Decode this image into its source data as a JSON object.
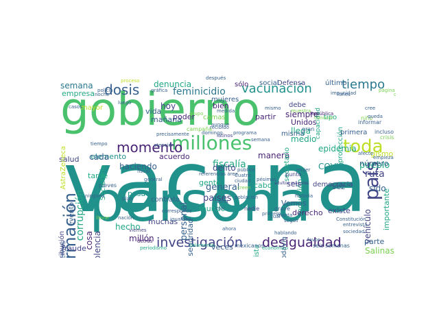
{
  "palette": {
    "yellow": "#bddf26",
    "lime": "#7ad151",
    "green": "#4ac16d",
    "teal": "#22a884",
    "sea": "#21918c",
    "blue": "#2a788e",
    "slate": "#355f8d",
    "indigo": "#414487",
    "purple": "#482475",
    "dark": "#440154"
  },
  "words": [
    {
      "id": "gobierno",
      "text": "gobierno"
    },
    {
      "id": "vacuna",
      "text": "vacuna"
    },
    {
      "id": "persona",
      "text": "persona"
    },
    {
      "id": "millones",
      "text": "millones"
    },
    {
      "id": "toda",
      "text": "toda"
    },
    {
      "id": "momento",
      "text": "momento"
    },
    {
      "id": "vacunacion",
      "text": "vacunación"
    },
    {
      "id": "tiempo",
      "text": "tiempo"
    },
    {
      "id": "dosis",
      "text": "dosis"
    },
    {
      "id": "informacion",
      "text": "información"
    },
    {
      "id": "investigacion",
      "text": "investigación"
    },
    {
      "id": "desigualdad",
      "text": "desigualdad"
    },
    {
      "id": "pais",
      "text": "país"
    },
    {
      "id": "feminicidio",
      "text": "feminicidio"
    },
    {
      "id": "denuncia",
      "text": "denuncia"
    },
    {
      "id": "semana",
      "text": "semana"
    },
    {
      "id": "empresa",
      "text": "empresa"
    },
    {
      "id": "corrupcion",
      "text": "corrupción"
    },
    {
      "id": "epidemia",
      "text": "epidemia"
    },
    {
      "id": "fiscalia",
      "text": "fiscalía"
    },
    {
      "id": "haciendo",
      "text": "haciendo"
    },
    {
      "id": "personal",
      "text": "personal"
    },
    {
      "id": "vehiculo",
      "text": "vehículo"
    },
    {
      "id": "reduccion",
      "text": "reducción"
    },
    {
      "id": "pueblo",
      "text": "pueblo"
    },
    {
      "id": "ruta",
      "text": "ruta"
    },
    {
      "id": "delito",
      "text": "delito"
    },
    {
      "id": "mundo",
      "text": "mundo"
    },
    {
      "id": "paises",
      "text": "países"
    },
    {
      "id": "general",
      "text": "general"
    },
    {
      "id": "cabo",
      "text": "cabo"
    },
    {
      "id": "derecho",
      "text": "derecho"
    },
    {
      "id": "existe",
      "text": "existe"
    },
    {
      "id": "seis",
      "text": "seis"
    },
    {
      "id": "gente",
      "text": "gente"
    },
    {
      "id": "hecho",
      "text": "hecho"
    },
    {
      "id": "fraude",
      "text": "fraude"
    },
    {
      "id": "hoy",
      "text": "hoy"
    },
    {
      "id": "poder",
      "text": "poder"
    },
    {
      "id": "bien",
      "text": "bien"
    },
    {
      "id": "debe",
      "text": "debe"
    },
    {
      "id": "siempre",
      "text": "siempre"
    },
    {
      "id": "unidos",
      "text": "Unidos"
    },
    {
      "id": "llega",
      "text": "llega"
    },
    {
      "id": "medio",
      "text": "medio"
    },
    {
      "id": "partir",
      "text": "partir"
    },
    {
      "id": "manera",
      "text": "manera"
    },
    {
      "id": "millon",
      "text": "millón"
    },
    {
      "id": "muchas",
      "text": "muchas"
    },
    {
      "id": "veces",
      "text": "veces"
    },
    {
      "id": "parte",
      "text": "parte"
    },
    {
      "id": "salinas",
      "text": "Salinas"
    },
    {
      "id": "covid",
      "text": "COVID"
    },
    {
      "id": "vemos",
      "text": "Vemos"
    },
    {
      "id": "vez",
      "text": "vez"
    },
    {
      "id": "sido",
      "text": "sido"
    },
    {
      "id": "numero",
      "text": "número"
    },
    {
      "id": "importante",
      "text": "importante"
    },
    {
      "id": "podemos",
      "text": "podemos"
    },
    {
      "id": "cosa",
      "text": "cosa"
    },
    {
      "id": "violencia",
      "text": "violencia"
    },
    {
      "id": "salud",
      "text": "salud"
    },
    {
      "id": "elemento",
      "text": "elemento"
    },
    {
      "id": "acuerdo",
      "text": "acuerdo"
    },
    {
      "id": "cada",
      "text": "cada"
    },
    {
      "id": "tarde",
      "text": "tarde"
    },
    {
      "id": "pasado",
      "text": "pasado"
    },
    {
      "id": "evento",
      "text": "evento"
    },
    {
      "id": "distribucion",
      "text": "distribución"
    },
    {
      "id": "mujeres",
      "text": "mujeres"
    },
    {
      "id": "manana",
      "text": "mañana"
    },
    {
      "id": "vida",
      "text": "vida"
    },
    {
      "id": "secretaria",
      "text": "Secretaría"
    },
    {
      "id": "secretario",
      "text": "secretario"
    },
    {
      "id": "seguridad",
      "text": "seguridad"
    },
    {
      "id": "contrato",
      "text": "contrato"
    },
    {
      "id": "periodista",
      "text": "periodista"
    },
    {
      "id": "todavia",
      "text": "todavía"
    },
    {
      "id": "democracia",
      "text": "democracia"
    },
    {
      "id": "proteccion",
      "text": "protección"
    },
    {
      "id": "primera",
      "text": "primera"
    },
    {
      "id": "ultimo",
      "text": "último"
    },
    {
      "id": "defensa",
      "text": "Defensa"
    },
    {
      "id": "social",
      "text": "social"
    },
    {
      "id": "solo",
      "text": "sólo"
    },
    {
      "id": "astrazeneca",
      "text": "AstraZeneca"
    },
    {
      "id": "mayor",
      "text": "mayor"
    },
    {
      "id": "tipo",
      "text": "tipo"
    },
    {
      "id": "capacidad",
      "text": "capacidad"
    },
    {
      "id": "camas",
      "text": "camas"
    },
    {
      "id": "campana",
      "text": "campaña"
    },
    {
      "id": "jueves",
      "text": "jueves"
    },
    {
      "id": "mexicanos",
      "text": "mexicanos"
    },
    {
      "id": "seis_semanas",
      "text": "seis semanas"
    },
    {
      "id": "mision",
      "text": "misma"
    },
    {
      "id": "gismo",
      "text": "gismo"
    },
    {
      "id": "grave",
      "text": "grave"
    },
    {
      "id": "punto",
      "text": "punto"
    },
    {
      "id": "nadie",
      "text": "nadie"
    },
    {
      "id": "gran",
      "text": "gran"
    },
    {
      "id": "informar",
      "text": "informar"
    },
    {
      "id": "incluso",
      "text": "incluso"
    },
    {
      "id": "crisis",
      "text": "crisis"
    },
    {
      "id": "nino",
      "text": "niño"
    },
    {
      "id": "recibido",
      "text": "recibido"
    },
    {
      "id": "latinos",
      "text": "latinos"
    },
    {
      "id": "corresponde",
      "text": "corresponde"
    },
    {
      "id": "igualdad",
      "text": "igualdad"
    },
    {
      "id": "poblacion",
      "text": "población"
    },
    {
      "id": "adultos_mayores",
      "text": "adultos mayores"
    },
    {
      "id": "conocer",
      "text": "conocer"
    },
    {
      "id": "impunidad",
      "text": "impunidad"
    },
    {
      "id": "ninguna",
      "text": "ninguna"
    },
    {
      "id": "nacion",
      "text": "nación"
    },
    {
      "id": "plan",
      "text": "plan"
    },
    {
      "id": "mujer",
      "text": "mujer"
    },
    {
      "id": "historia",
      "text": "historia"
    },
    {
      "id": "quinta",
      "text": "quinta"
    },
    {
      "id": "seguir",
      "text": "seguir"
    },
    {
      "id": "haciendo2",
      "text": "hablando"
    },
    {
      "id": "casos",
      "text": "casos"
    },
    {
      "id": "primero",
      "text": "primero"
    },
    {
      "id": "grafica",
      "text": "gráfica"
    },
    {
      "id": "cree",
      "text": "cree"
    },
    {
      "id": "queda",
      "text": "queda"
    },
    {
      "id": "despues",
      "text": "después"
    },
    {
      "id": "proceso",
      "text": "proceso"
    },
    {
      "id": "policia",
      "text": "policía"
    },
    {
      "id": "noche",
      "text": "noche"
    },
    {
      "id": "afecto",
      "text": "afecto"
    },
    {
      "id": "empieza",
      "text": "empieza"
    },
    {
      "id": "periodismo",
      "text": "periodismo"
    },
    {
      "id": "economico",
      "text": "económico"
    },
    {
      "id": "llevar",
      "text": "llevar"
    },
    {
      "id": "viernes",
      "text": "viernes"
    },
    {
      "id": "tiempo2",
      "text": "tiempo"
    },
    {
      "id": "zona",
      "text": "zona"
    },
    {
      "id": "casi",
      "text": "casi"
    },
    {
      "id": "aunque",
      "text": "aunque"
    },
    {
      "id": "domingo",
      "text": "domingo"
    },
    {
      "id": "publico",
      "text": "público"
    },
    {
      "id": "republica",
      "text": "República"
    },
    {
      "id": "solamente",
      "text": "solamente"
    },
    {
      "id": "detras",
      "text": "detrás"
    },
    {
      "id": "cuatro",
      "text": "Cuatro"
    },
    {
      "id": "ciudad",
      "text": "ciudad"
    },
    {
      "id": "creen",
      "text": "creen"
    },
    {
      "id": "precisamente",
      "text": "precisamente"
    },
    {
      "id": "programa",
      "text": "programa"
    },
    {
      "id": "semana2",
      "text": "semana"
    },
    {
      "id": "favor",
      "text": "favor"
    },
    {
      "id": "entrevista",
      "text": "entrevista"
    },
    {
      "id": "sociedad",
      "text": "sociedad"
    },
    {
      "id": "constitucion",
      "text": "Constitución"
    },
    {
      "id": "lunes",
      "text": "lunes"
    },
    {
      "id": "general2",
      "text": "general"
    },
    {
      "id": "mismo",
      "text": "mismo"
    },
    {
      "id": "cual",
      "text": "cuál"
    },
    {
      "id": "fiscal",
      "text": "fiscal"
    },
    {
      "id": "pagina",
      "text": "página"
    },
    {
      "id": "camino",
      "text": "camino"
    },
    {
      "id": "luego",
      "text": "luego"
    },
    {
      "id": "grupo",
      "text": "grupo"
    },
    {
      "id": "medida",
      "text": "medida"
    },
    {
      "id": "muestra",
      "text": "muestra"
    },
    {
      "id": "atencion",
      "text": "atención"
    },
    {
      "id": "pesimas",
      "text": "pésimas"
    },
    {
      "id": "referencia",
      "text": "referencias área"
    },
    {
      "id": "ahora",
      "text": "ahora"
    }
  ]
}
